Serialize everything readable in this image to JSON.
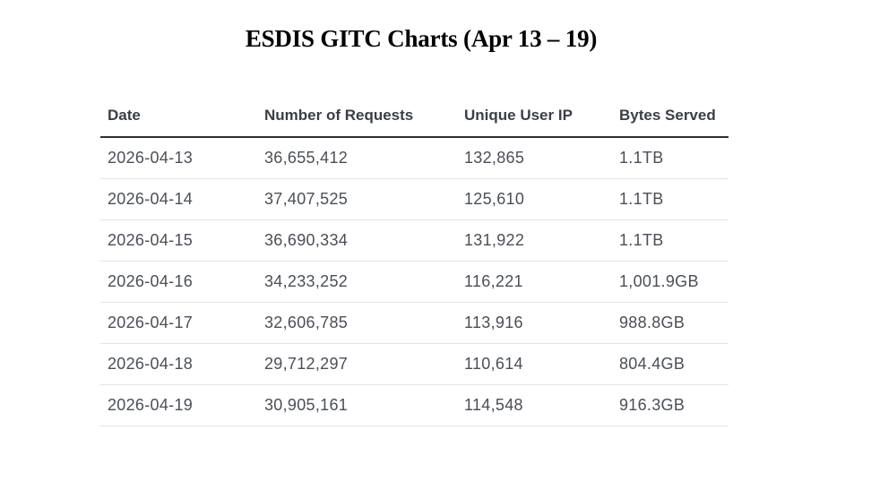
{
  "title": "ESDIS GITC Charts (Apr 13 – 19)",
  "table": {
    "headers": [
      "Date",
      "Number of Requests",
      "Unique User IP",
      "Bytes Served"
    ],
    "rows": [
      [
        "2026-04-13",
        "36,655,412",
        "132,865",
        "1.1TB"
      ],
      [
        "2026-04-14",
        "37,407,525",
        "125,610",
        "1.1TB"
      ],
      [
        "2026-04-15",
        "36,690,334",
        "131,922",
        "1.1TB"
      ],
      [
        "2026-04-16",
        "34,233,252",
        "116,221",
        "1,001.9GB"
      ],
      [
        "2026-04-17",
        "32,606,785",
        "113,916",
        "988.8GB"
      ],
      [
        "2026-04-18",
        "29,712,297",
        "110,614",
        "804.4GB"
      ],
      [
        "2026-04-19",
        "30,905,161",
        "114,548",
        "916.3GB"
      ]
    ]
  }
}
